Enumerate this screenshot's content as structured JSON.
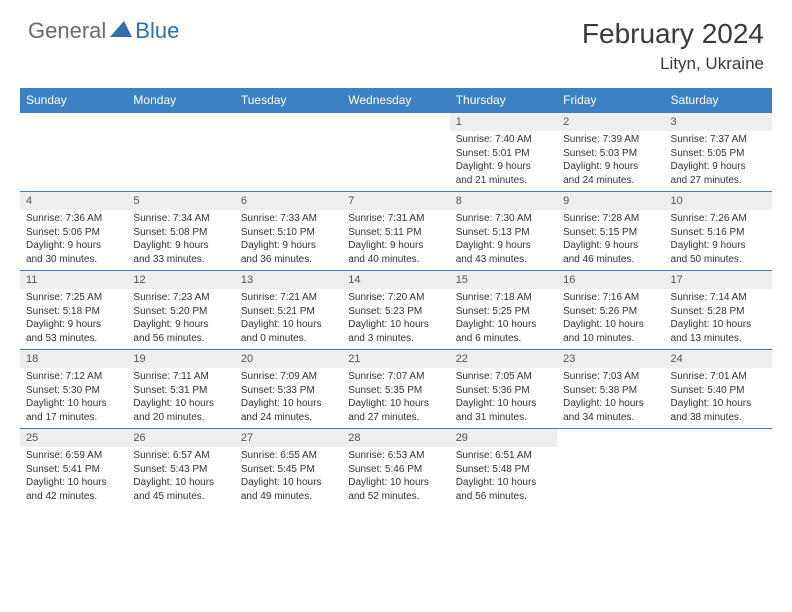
{
  "logo": {
    "general": "General",
    "blue": "Blue"
  },
  "title": "February 2024",
  "location": "Lityn, Ukraine",
  "colors": {
    "header_bg": "#3b82c4",
    "header_text": "#ffffff",
    "daynum_bg": "#eeeeee",
    "border": "#4a7aad",
    "text": "#333333",
    "logo_grey": "#6a6a6a",
    "logo_blue": "#2f6fae"
  },
  "weekdays": [
    "Sunday",
    "Monday",
    "Tuesday",
    "Wednesday",
    "Thursday",
    "Friday",
    "Saturday"
  ],
  "weeks": [
    {
      "nums": [
        "",
        "",
        "",
        "",
        "1",
        "2",
        "3"
      ],
      "cells": [
        null,
        null,
        null,
        null,
        {
          "sunrise": "7:40 AM",
          "sunset": "5:01 PM",
          "dl1": "Daylight: 9 hours",
          "dl2": "and 21 minutes."
        },
        {
          "sunrise": "7:39 AM",
          "sunset": "5:03 PM",
          "dl1": "Daylight: 9 hours",
          "dl2": "and 24 minutes."
        },
        {
          "sunrise": "7:37 AM",
          "sunset": "5:05 PM",
          "dl1": "Daylight: 9 hours",
          "dl2": "and 27 minutes."
        }
      ]
    },
    {
      "nums": [
        "4",
        "5",
        "6",
        "7",
        "8",
        "9",
        "10"
      ],
      "cells": [
        {
          "sunrise": "7:36 AM",
          "sunset": "5:06 PM",
          "dl1": "Daylight: 9 hours",
          "dl2": "and 30 minutes."
        },
        {
          "sunrise": "7:34 AM",
          "sunset": "5:08 PM",
          "dl1": "Daylight: 9 hours",
          "dl2": "and 33 minutes."
        },
        {
          "sunrise": "7:33 AM",
          "sunset": "5:10 PM",
          "dl1": "Daylight: 9 hours",
          "dl2": "and 36 minutes."
        },
        {
          "sunrise": "7:31 AM",
          "sunset": "5:11 PM",
          "dl1": "Daylight: 9 hours",
          "dl2": "and 40 minutes."
        },
        {
          "sunrise": "7:30 AM",
          "sunset": "5:13 PM",
          "dl1": "Daylight: 9 hours",
          "dl2": "and 43 minutes."
        },
        {
          "sunrise": "7:28 AM",
          "sunset": "5:15 PM",
          "dl1": "Daylight: 9 hours",
          "dl2": "and 46 minutes."
        },
        {
          "sunrise": "7:26 AM",
          "sunset": "5:16 PM",
          "dl1": "Daylight: 9 hours",
          "dl2": "and 50 minutes."
        }
      ]
    },
    {
      "nums": [
        "11",
        "12",
        "13",
        "14",
        "15",
        "16",
        "17"
      ],
      "cells": [
        {
          "sunrise": "7:25 AM",
          "sunset": "5:18 PM",
          "dl1": "Daylight: 9 hours",
          "dl2": "and 53 minutes."
        },
        {
          "sunrise": "7:23 AM",
          "sunset": "5:20 PM",
          "dl1": "Daylight: 9 hours",
          "dl2": "and 56 minutes."
        },
        {
          "sunrise": "7:21 AM",
          "sunset": "5:21 PM",
          "dl1": "Daylight: 10 hours",
          "dl2": "and 0 minutes."
        },
        {
          "sunrise": "7:20 AM",
          "sunset": "5:23 PM",
          "dl1": "Daylight: 10 hours",
          "dl2": "and 3 minutes."
        },
        {
          "sunrise": "7:18 AM",
          "sunset": "5:25 PM",
          "dl1": "Daylight: 10 hours",
          "dl2": "and 6 minutes."
        },
        {
          "sunrise": "7:16 AM",
          "sunset": "5:26 PM",
          "dl1": "Daylight: 10 hours",
          "dl2": "and 10 minutes."
        },
        {
          "sunrise": "7:14 AM",
          "sunset": "5:28 PM",
          "dl1": "Daylight: 10 hours",
          "dl2": "and 13 minutes."
        }
      ]
    },
    {
      "nums": [
        "18",
        "19",
        "20",
        "21",
        "22",
        "23",
        "24"
      ],
      "cells": [
        {
          "sunrise": "7:12 AM",
          "sunset": "5:30 PM",
          "dl1": "Daylight: 10 hours",
          "dl2": "and 17 minutes."
        },
        {
          "sunrise": "7:11 AM",
          "sunset": "5:31 PM",
          "dl1": "Daylight: 10 hours",
          "dl2": "and 20 minutes."
        },
        {
          "sunrise": "7:09 AM",
          "sunset": "5:33 PM",
          "dl1": "Daylight: 10 hours",
          "dl2": "and 24 minutes."
        },
        {
          "sunrise": "7:07 AM",
          "sunset": "5:35 PM",
          "dl1": "Daylight: 10 hours",
          "dl2": "and 27 minutes."
        },
        {
          "sunrise": "7:05 AM",
          "sunset": "5:36 PM",
          "dl1": "Daylight: 10 hours",
          "dl2": "and 31 minutes."
        },
        {
          "sunrise": "7:03 AM",
          "sunset": "5:38 PM",
          "dl1": "Daylight: 10 hours",
          "dl2": "and 34 minutes."
        },
        {
          "sunrise": "7:01 AM",
          "sunset": "5:40 PM",
          "dl1": "Daylight: 10 hours",
          "dl2": "and 38 minutes."
        }
      ]
    },
    {
      "nums": [
        "25",
        "26",
        "27",
        "28",
        "29",
        "",
        ""
      ],
      "cells": [
        {
          "sunrise": "6:59 AM",
          "sunset": "5:41 PM",
          "dl1": "Daylight: 10 hours",
          "dl2": "and 42 minutes."
        },
        {
          "sunrise": "6:57 AM",
          "sunset": "5:43 PM",
          "dl1": "Daylight: 10 hours",
          "dl2": "and 45 minutes."
        },
        {
          "sunrise": "6:55 AM",
          "sunset": "5:45 PM",
          "dl1": "Daylight: 10 hours",
          "dl2": "and 49 minutes."
        },
        {
          "sunrise": "6:53 AM",
          "sunset": "5:46 PM",
          "dl1": "Daylight: 10 hours",
          "dl2": "and 52 minutes."
        },
        {
          "sunrise": "6:51 AM",
          "sunset": "5:48 PM",
          "dl1": "Daylight: 10 hours",
          "dl2": "and 56 minutes."
        },
        null,
        null
      ]
    }
  ]
}
